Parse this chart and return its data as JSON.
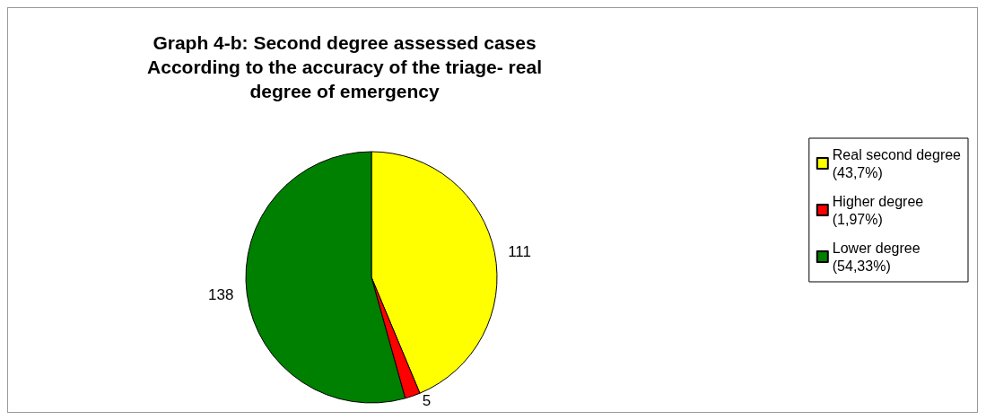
{
  "chart_data": {
    "type": "pie",
    "title": "Graph 4-b: Second degree assessed cases\nAccording to the accuracy of the triage- real\ndegree of emergency",
    "categories": [
      "Real second degree\n(43,7%)",
      "Higher degree\n(1,97%)",
      "Lower degree\n(54,33%)"
    ],
    "values": [
      111,
      5,
      138
    ],
    "colors": [
      "#ffff00",
      "#ff0000",
      "#008000"
    ],
    "data_labels": true,
    "legend": "right"
  }
}
